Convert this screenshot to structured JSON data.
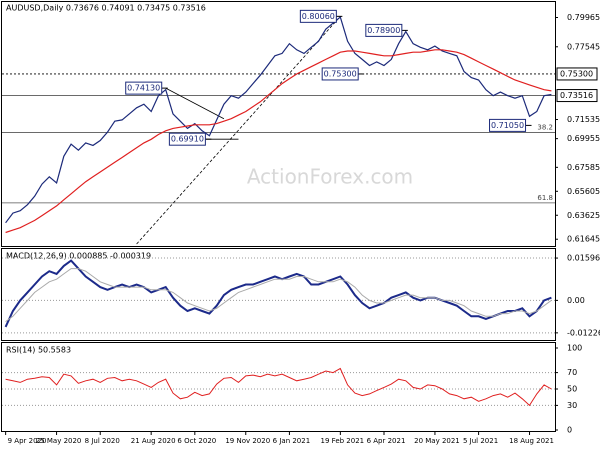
{
  "watermark": "ActionForex.com",
  "chart_data": [
    {
      "type": "line",
      "title": "AUDUSD,Daily  0.73676 0.74091 0.73475 0.73516",
      "ylim": [
        0.6125,
        0.8075
      ],
      "yticks": [
        0.79965,
        0.77545,
        0.71535,
        0.69955,
        0.67585,
        0.65605,
        0.63625,
        0.61645
      ],
      "grid": false,
      "series": [
        {
          "name": "AUDUSD",
          "color": "#1c2a7a",
          "values": [
            0.63,
            0.638,
            0.64,
            0.645,
            0.652,
            0.662,
            0.668,
            0.663,
            0.685,
            0.695,
            0.69,
            0.696,
            0.694,
            0.698,
            0.705,
            0.714,
            0.715,
            0.72,
            0.725,
            0.728,
            0.722,
            0.735,
            0.74,
            0.72,
            0.714,
            0.708,
            0.712,
            0.706,
            0.702,
            0.715,
            0.728,
            0.735,
            0.733,
            0.738,
            0.745,
            0.752,
            0.76,
            0.768,
            0.77,
            0.778,
            0.773,
            0.77,
            0.775,
            0.78,
            0.79,
            0.795,
            0.8,
            0.78,
            0.77,
            0.765,
            0.76,
            0.763,
            0.76,
            0.765,
            0.778,
            0.788,
            0.778,
            0.775,
            0.773,
            0.776,
            0.772,
            0.77,
            0.768,
            0.755,
            0.75,
            0.748,
            0.74,
            0.735,
            0.738,
            0.735,
            0.733,
            0.735,
            0.718,
            0.722,
            0.735,
            0.736
          ]
        },
        {
          "name": "MA",
          "color": "#e02020",
          "values": [
            0.622,
            0.624,
            0.626,
            0.629,
            0.632,
            0.636,
            0.64,
            0.644,
            0.649,
            0.654,
            0.659,
            0.664,
            0.668,
            0.672,
            0.676,
            0.68,
            0.684,
            0.688,
            0.692,
            0.696,
            0.699,
            0.703,
            0.706,
            0.708,
            0.709,
            0.71,
            0.711,
            0.711,
            0.711,
            0.712,
            0.714,
            0.716,
            0.719,
            0.722,
            0.726,
            0.73,
            0.735,
            0.74,
            0.745,
            0.749,
            0.753,
            0.756,
            0.759,
            0.762,
            0.765,
            0.768,
            0.771,
            0.772,
            0.772,
            0.771,
            0.77,
            0.769,
            0.768,
            0.768,
            0.769,
            0.77,
            0.771,
            0.771,
            0.772,
            0.773,
            0.773,
            0.772,
            0.771,
            0.769,
            0.766,
            0.763,
            0.76,
            0.757,
            0.754,
            0.751,
            0.748,
            0.746,
            0.744,
            0.742,
            0.74,
            0.739
          ]
        }
      ],
      "annotations": [
        {
          "index": 46,
          "value": 0.8006,
          "label": "0.80060"
        },
        {
          "index": 55,
          "value": 0.789,
          "label": "0.78900"
        },
        {
          "index": 49,
          "value": 0.753,
          "label": "0.75300"
        },
        {
          "index": 22,
          "value": 0.7413,
          "label": "0.74130"
        },
        {
          "index": 28,
          "value": 0.6991,
          "label": "0.69910"
        },
        {
          "index": 72,
          "value": 0.7105,
          "label": "0.71050"
        }
      ],
      "levels": [
        {
          "value": 0.753,
          "label": "0.75300",
          "style": "dotted",
          "boxed": true
        },
        {
          "value": 0.73516,
          "label": "0.73516",
          "style": "solid",
          "boxed": true
        },
        {
          "value": 0.7047,
          "label": "38.2",
          "style": "solid",
          "boxed": false
        },
        {
          "value": 0.6465,
          "label": "61.8",
          "style": "solid",
          "boxed": false
        }
      ],
      "trendlines": [
        {
          "from": [
            22,
            0.7413
          ],
          "to": [
            30,
            0.716
          ],
          "dashed": false
        },
        {
          "from": [
            24,
            0.6991
          ],
          "to": [
            32,
            0.6991
          ],
          "dashed": false
        },
        {
          "from": [
            18,
            0.6125
          ],
          "to": [
            46,
            0.8006
          ],
          "dashed": true
        }
      ]
    },
    {
      "type": "line",
      "title": "MACD(12,26,9) 0.000885 -0.000319",
      "ylim": [
        -0.0142,
        0.0175
      ],
      "yticks": [
        0.015968,
        {
          "value": 0,
          "label": "0.00"
        },
        -0.01226
      ],
      "grid": true,
      "series": [
        {
          "name": "MACD",
          "color": "#1c2a8a",
          "width": 2,
          "values": [
            -0.01,
            -0.004,
            0.0,
            0.003,
            0.006,
            0.009,
            0.011,
            0.01,
            0.013,
            0.015,
            0.012,
            0.009,
            0.007,
            0.005,
            0.004,
            0.005,
            0.006,
            0.005,
            0.006,
            0.005,
            0.003,
            0.004,
            0.005,
            0.001,
            -0.002,
            -0.004,
            -0.003,
            -0.004,
            -0.005,
            -0.002,
            0.002,
            0.004,
            0.005,
            0.006,
            0.006,
            0.007,
            0.008,
            0.009,
            0.008,
            0.009,
            0.01,
            0.009,
            0.006,
            0.006,
            0.007,
            0.008,
            0.009,
            0.006,
            0.002,
            -0.001,
            -0.003,
            -0.002,
            -0.001,
            0.001,
            0.002,
            0.003,
            0.001,
            0.0,
            0.001,
            0.001,
            0.0,
            -0.001,
            -0.002,
            -0.004,
            -0.006,
            -0.006,
            -0.007,
            -0.006,
            -0.005,
            -0.004,
            -0.004,
            -0.003,
            -0.006,
            -0.004,
            0.0,
            0.001
          ]
        },
        {
          "name": "Signal",
          "color": "#aaaaaa",
          "width": 1,
          "values": [
            -0.008,
            -0.006,
            -0.003,
            0.0,
            0.003,
            0.005,
            0.007,
            0.008,
            0.01,
            0.012,
            0.012,
            0.011,
            0.009,
            0.007,
            0.006,
            0.005,
            0.005,
            0.005,
            0.005,
            0.005,
            0.004,
            0.004,
            0.004,
            0.003,
            0.001,
            -0.001,
            -0.002,
            -0.003,
            -0.004,
            -0.003,
            -0.001,
            0.001,
            0.003,
            0.004,
            0.005,
            0.006,
            0.007,
            0.008,
            0.008,
            0.008,
            0.009,
            0.009,
            0.008,
            0.007,
            0.007,
            0.007,
            0.008,
            0.007,
            0.005,
            0.002,
            0.0,
            -0.001,
            -0.001,
            0.0,
            0.001,
            0.002,
            0.002,
            0.001,
            0.001,
            0.001,
            0.0,
            0.0,
            -0.001,
            -0.002,
            -0.004,
            -0.005,
            -0.006,
            -0.006,
            -0.005,
            -0.005,
            -0.004,
            -0.004,
            -0.005,
            -0.004,
            -0.002,
            0.0
          ]
        }
      ]
    },
    {
      "type": "line",
      "title": "RSI(14) 50.5583",
      "ylim": [
        0,
        100
      ],
      "yticks": [
        100,
        70,
        50,
        30,
        0
      ],
      "grid": true,
      "categories": [
        "9 Apr 2020",
        null,
        null,
        null,
        null,
        null,
        null,
        "25 May 2020",
        null,
        null,
        null,
        null,
        null,
        "8 Jul 2020",
        null,
        null,
        null,
        null,
        null,
        null,
        "21 Aug 2020",
        null,
        null,
        null,
        null,
        null,
        "6 Oct 2020",
        null,
        null,
        null,
        null,
        null,
        null,
        "19 Nov 2020",
        null,
        null,
        null,
        null,
        null,
        "6 Jan 2021",
        null,
        null,
        null,
        null,
        null,
        null,
        "19 Feb 2021",
        null,
        null,
        null,
        null,
        null,
        "6 Apr 2021",
        null,
        null,
        null,
        null,
        null,
        null,
        "20 May 2021",
        null,
        null,
        null,
        null,
        null,
        "5 Jul 2021",
        null,
        null,
        null,
        null,
        null,
        null,
        "18 Aug 2021",
        null,
        null,
        null
      ],
      "series": [
        {
          "name": "RSI",
          "color": "#e02020",
          "width": 1,
          "values": [
            62,
            60,
            58,
            62,
            63,
            65,
            64,
            55,
            68,
            66,
            57,
            60,
            62,
            58,
            63,
            64,
            60,
            62,
            60,
            56,
            52,
            58,
            62,
            45,
            38,
            40,
            46,
            42,
            44,
            56,
            63,
            64,
            58,
            66,
            67,
            65,
            68,
            66,
            68,
            64,
            60,
            62,
            64,
            68,
            72,
            70,
            75,
            55,
            45,
            42,
            44,
            48,
            52,
            56,
            62,
            60,
            52,
            50,
            55,
            54,
            50,
            44,
            42,
            38,
            40,
            35,
            38,
            42,
            44,
            40,
            45,
            38,
            30,
            44,
            55,
            50
          ]
        }
      ]
    }
  ]
}
